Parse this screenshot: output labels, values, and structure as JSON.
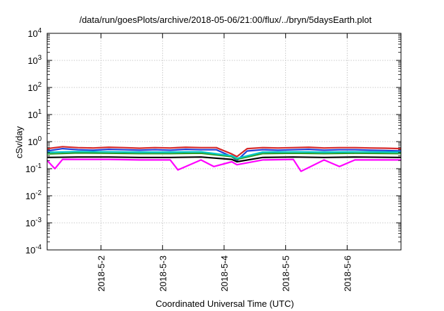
{
  "chart_data": {
    "type": "line",
    "title": "/data/run/goesPlots/archive/2018-05-06/21:00/flux/../bryn/5daysEarth.plot",
    "xlabel": "Coordinated Universal Time (UTC)",
    "ylabel": "cSv/day",
    "yscale": "log",
    "ylim": [
      0.0001,
      10000
    ],
    "y_ticks": [
      {
        "exp": "-4",
        "value": 0.0001
      },
      {
        "exp": "-3",
        "value": 0.001
      },
      {
        "exp": "-2",
        "value": 0.01
      },
      {
        "exp": "-1",
        "value": 0.1
      },
      {
        "exp": "0",
        "value": 1
      },
      {
        "exp": "1",
        "value": 10
      },
      {
        "exp": "2",
        "value": 100
      },
      {
        "exp": "3",
        "value": 1000
      },
      {
        "exp": "4",
        "value": 10000
      }
    ],
    "xlim": [
      "2018-05-01T03:00",
      "2018-05-06T21:00"
    ],
    "x_ticks": [
      "2018-5-2",
      "2018-5-3",
      "2018-5-4",
      "2018-5-5",
      "2018-5-6"
    ],
    "x_tick_dates": [
      "2018-05-02T00:00",
      "2018-05-03T00:00",
      "2018-05-04T00:00",
      "2018-05-05T00:00",
      "2018-05-06T00:00"
    ],
    "grid": true,
    "legend": "none",
    "series": [
      {
        "color": "#d62728",
        "x": [
          "2018-05-01T03:00",
          "2018-05-01T09:00",
          "2018-05-01T15:00",
          "2018-05-01T21:00",
          "2018-05-02T03:00",
          "2018-05-02T09:00",
          "2018-05-02T15:00",
          "2018-05-02T21:00",
          "2018-05-03T03:00",
          "2018-05-03T09:00",
          "2018-05-03T15:00",
          "2018-05-03T21:00",
          "2018-05-04T03:00",
          "2018-05-04T05:00",
          "2018-05-04T09:00",
          "2018-05-04T15:00",
          "2018-05-04T21:00",
          "2018-05-05T03:00",
          "2018-05-05T09:00",
          "2018-05-05T15:00",
          "2018-05-05T21:00",
          "2018-05-06T03:00",
          "2018-05-06T09:00",
          "2018-05-06T15:00",
          "2018-05-06T21:00"
        ],
        "values": [
          0.55,
          0.65,
          0.6,
          0.58,
          0.62,
          0.6,
          0.57,
          0.6,
          0.58,
          0.62,
          0.6,
          0.6,
          0.35,
          0.28,
          0.55,
          0.6,
          0.58,
          0.6,
          0.62,
          0.58,
          0.6,
          0.6,
          0.58,
          0.57,
          0.55
        ]
      },
      {
        "color": "#1f3fd9",
        "x": [
          "2018-05-01T03:00",
          "2018-05-01T09:00",
          "2018-05-01T15:00",
          "2018-05-01T21:00",
          "2018-05-02T03:00",
          "2018-05-02T09:00",
          "2018-05-02T15:00",
          "2018-05-02T21:00",
          "2018-05-03T03:00",
          "2018-05-03T09:00",
          "2018-05-03T15:00",
          "2018-05-03T21:00",
          "2018-05-04T03:00",
          "2018-05-04T05:00",
          "2018-05-04T09:00",
          "2018-05-04T15:00",
          "2018-05-04T21:00",
          "2018-05-05T03:00",
          "2018-05-05T09:00",
          "2018-05-05T15:00",
          "2018-05-05T21:00",
          "2018-05-06T03:00",
          "2018-05-06T09:00",
          "2018-05-06T15:00",
          "2018-05-06T21:00"
        ],
        "values": [
          0.45,
          0.55,
          0.5,
          0.48,
          0.52,
          0.5,
          0.48,
          0.5,
          0.48,
          0.52,
          0.5,
          0.5,
          0.28,
          0.2,
          0.45,
          0.5,
          0.48,
          0.5,
          0.52,
          0.48,
          0.5,
          0.5,
          0.48,
          0.47,
          0.45
        ]
      },
      {
        "color": "#2ca02c",
        "x": [
          "2018-05-01T03:00",
          "2018-05-01T15:00",
          "2018-05-02T03:00",
          "2018-05-02T15:00",
          "2018-05-03T03:00",
          "2018-05-03T15:00",
          "2018-05-04T03:00",
          "2018-05-04T05:00",
          "2018-05-04T15:00",
          "2018-05-05T03:00",
          "2018-05-05T15:00",
          "2018-05-06T03:00",
          "2018-05-06T21:00"
        ],
        "values": [
          0.35,
          0.38,
          0.37,
          0.36,
          0.36,
          0.37,
          0.28,
          0.22,
          0.36,
          0.37,
          0.36,
          0.37,
          0.36
        ]
      },
      {
        "color": "#00c8c8",
        "x": [
          "2018-05-01T03:00",
          "2018-05-01T15:00",
          "2018-05-02T03:00",
          "2018-05-02T15:00",
          "2018-05-03T03:00",
          "2018-05-03T15:00",
          "2018-05-04T03:00",
          "2018-05-04T05:00",
          "2018-05-04T15:00",
          "2018-05-05T03:00",
          "2018-05-05T15:00",
          "2018-05-06T03:00",
          "2018-05-06T21:00"
        ],
        "values": [
          0.4,
          0.43,
          0.42,
          0.41,
          0.41,
          0.42,
          0.3,
          0.24,
          0.41,
          0.42,
          0.41,
          0.42,
          0.41
        ]
      },
      {
        "color": "#000000",
        "x": [
          "2018-05-01T03:00",
          "2018-05-01T15:00",
          "2018-05-02T03:00",
          "2018-05-02T15:00",
          "2018-05-03T03:00",
          "2018-05-03T15:00",
          "2018-05-04T03:00",
          "2018-05-04T05:00",
          "2018-05-04T15:00",
          "2018-05-05T03:00",
          "2018-05-05T15:00",
          "2018-05-06T03:00",
          "2018-05-06T21:00"
        ],
        "values": [
          0.26,
          0.27,
          0.27,
          0.26,
          0.26,
          0.27,
          0.22,
          0.18,
          0.26,
          0.27,
          0.26,
          0.27,
          0.26
        ]
      },
      {
        "color": "#ff00ff",
        "x": [
          "2018-05-01T03:00",
          "2018-05-01T06:00",
          "2018-05-01T09:00",
          "2018-05-01T15:00",
          "2018-05-02T03:00",
          "2018-05-02T15:00",
          "2018-05-03T03:00",
          "2018-05-03T06:00",
          "2018-05-03T15:00",
          "2018-05-03T20:00",
          "2018-05-04T03:00",
          "2018-05-04T05:00",
          "2018-05-04T15:00",
          "2018-05-05T03:00",
          "2018-05-05T06:00",
          "2018-05-05T15:00",
          "2018-05-05T21:00",
          "2018-05-06T03:00",
          "2018-05-06T21:00"
        ],
        "values": [
          0.2,
          0.1,
          0.22,
          0.22,
          0.22,
          0.21,
          0.21,
          0.09,
          0.21,
          0.12,
          0.18,
          0.14,
          0.21,
          0.22,
          0.08,
          0.21,
          0.12,
          0.21,
          0.21
        ]
      }
    ]
  }
}
